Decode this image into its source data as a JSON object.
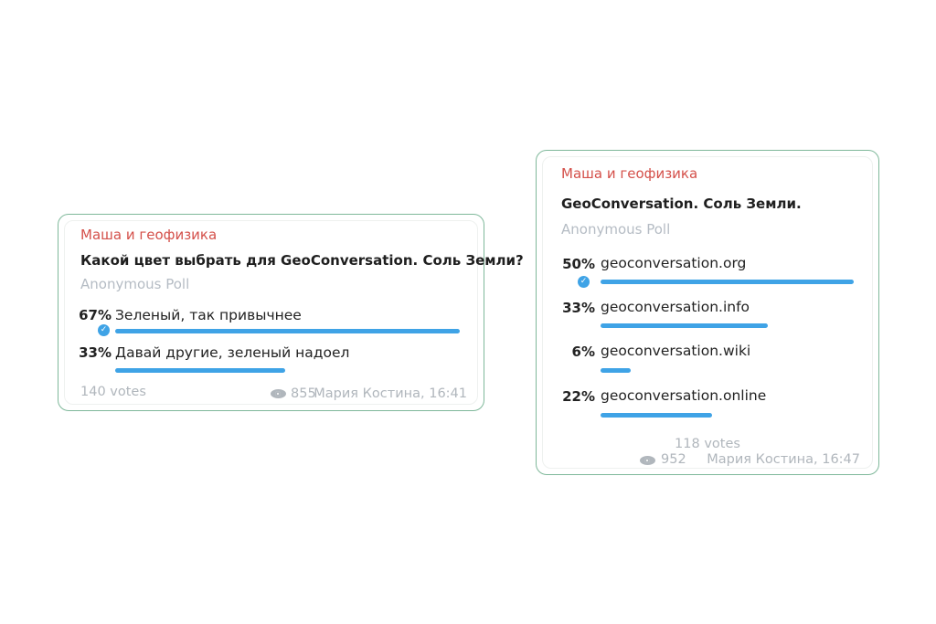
{
  "colors": {
    "sender": "#d4504a",
    "bar": "#3fa3e6",
    "border": "#7fb89a"
  },
  "polls": [
    {
      "sender": "Маша и геофизика",
      "question": "Какой цвет выбрать для GeoConversation. Соль Земли?",
      "type": "Anonymous Poll",
      "options": [
        {
          "percent": "67%",
          "value": 67,
          "label": "Зеленый, так привычнее",
          "chosen": true
        },
        {
          "percent": "33%",
          "value": 33,
          "label": "Давай другие, зеленый надоел",
          "chosen": false
        }
      ],
      "votes": "140 votes",
      "views": "855",
      "author_time": "Мария Костина, 16:41"
    },
    {
      "sender": "Маша и геофизика",
      "question": "GeoConversation. Соль Земли.",
      "type": "Anonymous Poll",
      "options": [
        {
          "percent": "50%",
          "value": 50,
          "label": "geoconversation.org",
          "chosen": true
        },
        {
          "percent": "33%",
          "value": 33,
          "label": "geoconversation.info",
          "chosen": false
        },
        {
          "percent": "6%",
          "value": 6,
          "label": "geoconversation.wiki",
          "chosen": false
        },
        {
          "percent": "22%",
          "value": 22,
          "label": "geoconversation.online",
          "chosen": false
        }
      ],
      "votes": "118 votes",
      "views": "952",
      "author_time": "Мария Костина, 16:47"
    }
  ]
}
